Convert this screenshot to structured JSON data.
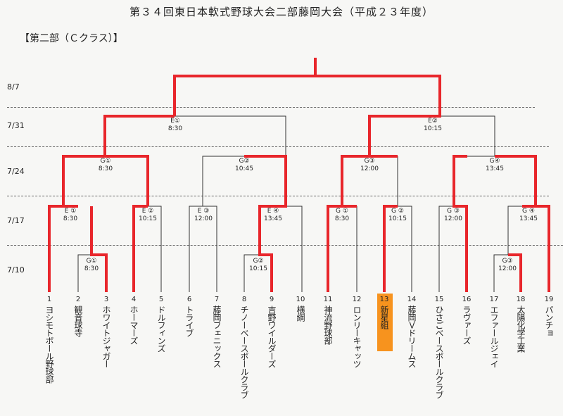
{
  "title": "第３４回東日本軟式野球大会二部藤岡大会（平成２３年度）",
  "division": "【第二部（Ｃクラス）】",
  "dates": [
    "8/7",
    "7/31",
    "7/24",
    "7/17",
    "7/10"
  ],
  "highlight_color": "#f7931e",
  "winner_line_color": "#e8262b",
  "teams": [
    {
      "no": "1",
      "name": "ヨシモトボール野球部"
    },
    {
      "no": "2",
      "name": "観音球寺"
    },
    {
      "no": "3",
      "name": "ホワイトジャガー"
    },
    {
      "no": "4",
      "name": "ホーマーズ"
    },
    {
      "no": "5",
      "name": "ドルフィンズ"
    },
    {
      "no": "6",
      "name": "トライブ"
    },
    {
      "no": "7",
      "name": "藤岡フェニックス"
    },
    {
      "no": "8",
      "name": "チノーベースボールクラブ"
    },
    {
      "no": "9",
      "name": "吉野ワイルダーズ"
    },
    {
      "no": "10",
      "name": "横綱"
    },
    {
      "no": "11",
      "name": "神流野球部"
    },
    {
      "no": "12",
      "name": "ロンリーキャッツ"
    },
    {
      "no": "13",
      "name": "新星組"
    },
    {
      "no": "14",
      "name": "藤岡Ｖドリームス"
    },
    {
      "no": "15",
      "name": "ひさごベースボールクラブ"
    },
    {
      "no": "16",
      "name": "ラヴァーズ"
    },
    {
      "no": "17",
      "name": "エファールジェイ"
    },
    {
      "no": "18",
      "name": "太陽化学工業"
    },
    {
      "no": "19",
      "name": "パンチョ"
    }
  ],
  "matches": [
    {
      "code": "G①",
      "time": "8:30"
    },
    {
      "code": "G②",
      "time": "10:15"
    },
    {
      "code": "G③",
      "time": "12:00"
    },
    {
      "code": "E ①",
      "time": "8:30"
    },
    {
      "code": "E ②",
      "time": "10:15"
    },
    {
      "code": "E ③",
      "time": "12:00"
    },
    {
      "code": "E ④",
      "time": "13:45"
    },
    {
      "code": "G ①",
      "time": "8:30"
    },
    {
      "code": "G ②",
      "time": "10:15"
    },
    {
      "code": "G ③",
      "time": "12:00"
    },
    {
      "code": "G ④",
      "time": "13:45"
    },
    {
      "code": "G①",
      "time": "8:30"
    },
    {
      "code": "G②",
      "time": "10:45"
    },
    {
      "code": "G③",
      "time": "12:00"
    },
    {
      "code": "G④",
      "time": "13:45"
    },
    {
      "code": "E①",
      "time": "8:30"
    },
    {
      "code": "E②",
      "time": "10:15"
    }
  ]
}
